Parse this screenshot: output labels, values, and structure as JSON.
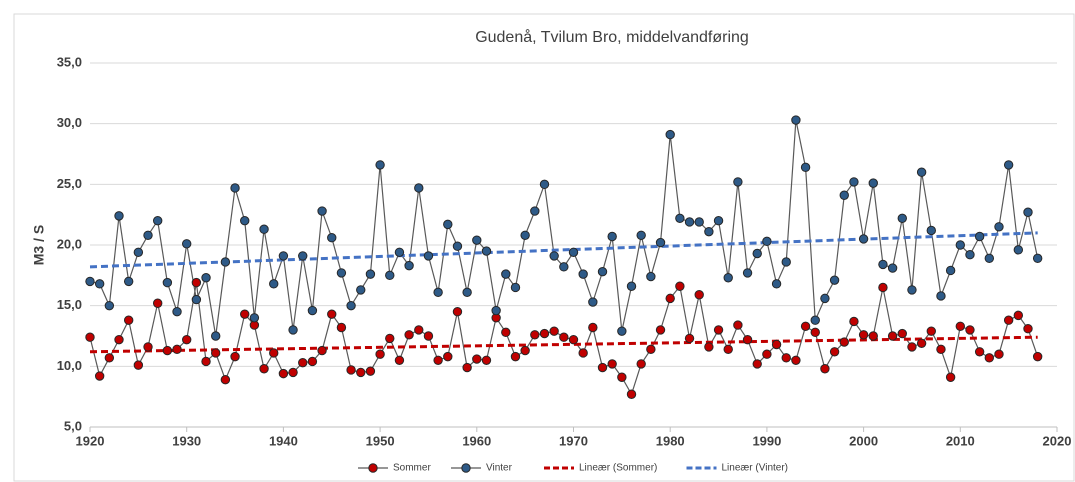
{
  "chart_data": {
    "type": "line",
    "title": "Gudenå, Tvilum Bro, middelvandføring",
    "y_label": "M3 / S",
    "x": [
      1920,
      1921,
      1922,
      1923,
      1924,
      1925,
      1926,
      1927,
      1928,
      1929,
      1930,
      1931,
      1932,
      1933,
      1934,
      1935,
      1936,
      1937,
      1938,
      1939,
      1940,
      1941,
      1942,
      1943,
      1944,
      1945,
      1946,
      1947,
      1948,
      1949,
      1950,
      1951,
      1952,
      1953,
      1954,
      1955,
      1956,
      1957,
      1958,
      1959,
      1960,
      1961,
      1962,
      1963,
      1964,
      1965,
      1966,
      1967,
      1968,
      1969,
      1970,
      1971,
      1972,
      1973,
      1974,
      1975,
      1976,
      1977,
      1978,
      1979,
      1980,
      1981,
      1982,
      1983,
      1984,
      1985,
      1986,
      1987,
      1988,
      1989,
      1990,
      1991,
      1992,
      1993,
      1994,
      1995,
      1996,
      1997,
      1998,
      1999,
      2000,
      2001,
      2002,
      2003,
      2004,
      2005,
      2006,
      2007,
      2008,
      2009,
      2010,
      2011,
      2012,
      2013,
      2014,
      2015,
      2016,
      2017,
      2018
    ],
    "series": [
      {
        "name": "Sommer",
        "color": "#c00000",
        "marker": true,
        "values": [
          12.4,
          9.2,
          10.7,
          12.2,
          13.8,
          10.1,
          11.6,
          15.2,
          11.3,
          11.4,
          12.2,
          16.9,
          10.4,
          11.1,
          8.9,
          10.8,
          14.3,
          13.4,
          9.8,
          11.1,
          9.4,
          9.5,
          10.3,
          10.4,
          11.3,
          14.3,
          13.2,
          9.7,
          9.5,
          9.6,
          11.0,
          12.3,
          10.5,
          12.6,
          13.0,
          12.5,
          10.5,
          10.8,
          14.5,
          9.9,
          10.6,
          10.5,
          14.0,
          12.8,
          10.8,
          11.3,
          12.6,
          12.7,
          12.9,
          12.4,
          12.2,
          11.1,
          13.2,
          9.9,
          10.2,
          9.1,
          7.7,
          10.2,
          11.4,
          13.0,
          15.6,
          16.6,
          12.3,
          15.9,
          11.6,
          13.0,
          11.4,
          13.4,
          12.2,
          10.2,
          11.0,
          11.8,
          10.7,
          10.5,
          13.3,
          12.8,
          9.8,
          11.2,
          12.0,
          13.7,
          12.6,
          12.5,
          16.5,
          12.5,
          12.7,
          11.6,
          11.9,
          12.9,
          11.4,
          9.1,
          13.3,
          13.0,
          11.2,
          10.7,
          11.0,
          13.8,
          14.2,
          13.1,
          10.8
        ]
      },
      {
        "name": "Vinter",
        "color": "#2e5a87",
        "marker": true,
        "values": [
          17.0,
          16.8,
          15.0,
          22.4,
          17.0,
          19.4,
          20.8,
          22.0,
          16.9,
          14.5,
          20.1,
          15.5,
          17.3,
          12.5,
          18.6,
          24.7,
          22.0,
          14.0,
          21.3,
          16.8,
          19.1,
          13.0,
          19.1,
          14.6,
          22.8,
          20.6,
          17.7,
          15.0,
          16.3,
          17.6,
          26.6,
          17.5,
          19.4,
          18.3,
          24.7,
          19.1,
          16.1,
          21.7,
          19.9,
          16.1,
          20.4,
          19.5,
          14.6,
          17.6,
          16.5,
          20.8,
          22.8,
          25.0,
          19.1,
          18.2,
          19.4,
          17.6,
          15.3,
          17.8,
          20.7,
          12.9,
          16.6,
          20.8,
          17.4,
          20.2,
          29.1,
          22.2,
          21.9,
          21.9,
          21.1,
          22.0,
          17.3,
          25.2,
          17.7,
          19.3,
          20.3,
          16.8,
          18.6,
          30.3,
          26.4,
          13.8,
          15.6,
          17.1,
          24.1,
          25.2,
          20.5,
          25.1,
          18.4,
          18.1,
          22.2,
          16.3,
          26.0,
          21.2,
          15.8,
          17.9,
          20.0,
          19.2,
          20.7,
          18.9,
          21.5,
          26.6,
          19.6,
          22.7,
          18.9
        ]
      },
      {
        "name": "Lineær (Sommer)",
        "color": "#c00000",
        "dashed": true,
        "x": [
          1920,
          2018
        ],
        "values": [
          11.2,
          12.4
        ]
      },
      {
        "name": "Lineær (Vinter)",
        "color": "#4472c4",
        "dashed": true,
        "x": [
          1920,
          2018
        ],
        "values": [
          18.2,
          21.0
        ]
      }
    ],
    "xlim": [
      1920,
      2020
    ],
    "xticks": [
      1920,
      1930,
      1940,
      1950,
      1960,
      1970,
      1980,
      1990,
      2000,
      2010,
      2020
    ],
    "ylim": [
      5,
      35
    ],
    "yticks": [
      {
        "value": 5,
        "label": "5,0"
      },
      {
        "value": 10,
        "label": "10,0"
      },
      {
        "value": 15,
        "label": "15,0"
      },
      {
        "value": 20,
        "label": "20,0"
      },
      {
        "value": 25,
        "label": "25,0"
      },
      {
        "value": 30,
        "label": "30,0"
      },
      {
        "value": 35,
        "label": "35,0"
      }
    ],
    "grid": true,
    "legend": "bottom"
  }
}
